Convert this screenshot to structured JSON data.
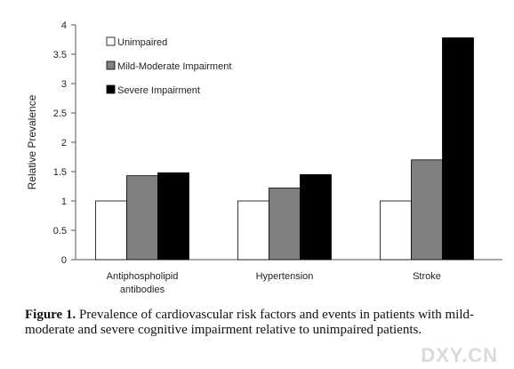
{
  "chart_data": {
    "type": "bar",
    "categories": [
      "Antiphospholipid antibodies",
      "Hypertension",
      "Stroke"
    ],
    "series": [
      {
        "name": "Unimpaired",
        "color": "#ffffff",
        "values": [
          1,
          1,
          1
        ]
      },
      {
        "name": "Mild-Moderate Impairment",
        "color": "#808080",
        "values": [
          1.43,
          1.22,
          1.7
        ]
      },
      {
        "name": "Severe Impairment",
        "color": "#000000",
        "values": [
          1.48,
          1.45,
          3.78
        ]
      }
    ],
    "ylabel": "Relative Prevalence",
    "ylim": [
      0,
      4
    ],
    "yticks": [
      0,
      0.5,
      1,
      1.5,
      2,
      2.5,
      3,
      3.5,
      4
    ],
    "grid": false,
    "legend": "upper left"
  },
  "caption": {
    "label": "Figure 1.",
    "text": "Prevalence of cardiovascular risk factors and events in patients with mild-moderate and severe cognitive impairment relative to unimpaired patients."
  },
  "watermark": "DXY.CN"
}
